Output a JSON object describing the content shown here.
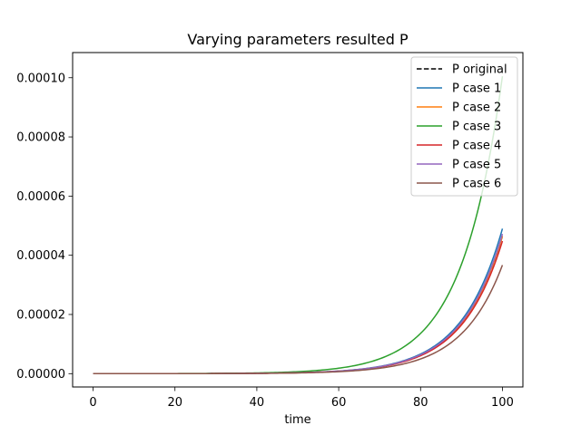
{
  "chart_data": {
    "type": "line",
    "title": "Varying parameters resulted P",
    "xlabel": "time",
    "ylabel": "",
    "xlim": [
      -5,
      105
    ],
    "ylim": [
      -4.5e-06,
      0.0001085
    ],
    "x_ticks": [
      0,
      20,
      40,
      60,
      80,
      100
    ],
    "x_tick_labels": [
      "0",
      "20",
      "40",
      "60",
      "80",
      "100"
    ],
    "y_ticks": [
      0,
      2e-05,
      4e-05,
      6e-05,
      8e-05,
      0.0001
    ],
    "y_tick_labels": [
      "0.00000",
      "0.00002",
      "0.00004",
      "0.00006",
      "0.00008",
      "0.00010"
    ],
    "grid": false,
    "legend_position": "top-right",
    "series": [
      {
        "name": "P original",
        "color": "#000000",
        "dash": true,
        "final_value": 4.65e-05,
        "growth_rate": 0.1
      },
      {
        "name": "P case 1",
        "color": "#1f77b4",
        "dash": false,
        "final_value": 4.9e-05,
        "growth_rate": 0.1
      },
      {
        "name": "P case 2",
        "color": "#ff7f0e",
        "dash": false,
        "final_value": 4.65e-05,
        "growth_rate": 0.1
      },
      {
        "name": "P case 3",
        "color": "#2ca02c",
        "dash": false,
        "final_value": 0.0001005,
        "growth_rate": 0.1
      },
      {
        "name": "P case 4",
        "color": "#d62728",
        "dash": false,
        "final_value": 4.48e-05,
        "growth_rate": 0.1
      },
      {
        "name": "P case 5",
        "color": "#9467bd",
        "dash": false,
        "final_value": 4.72e-05,
        "growth_rate": 0.1
      },
      {
        "name": "P case 6",
        "color": "#8c564b",
        "dash": false,
        "final_value": 3.67e-05,
        "growth_rate": 0.1
      }
    ]
  }
}
